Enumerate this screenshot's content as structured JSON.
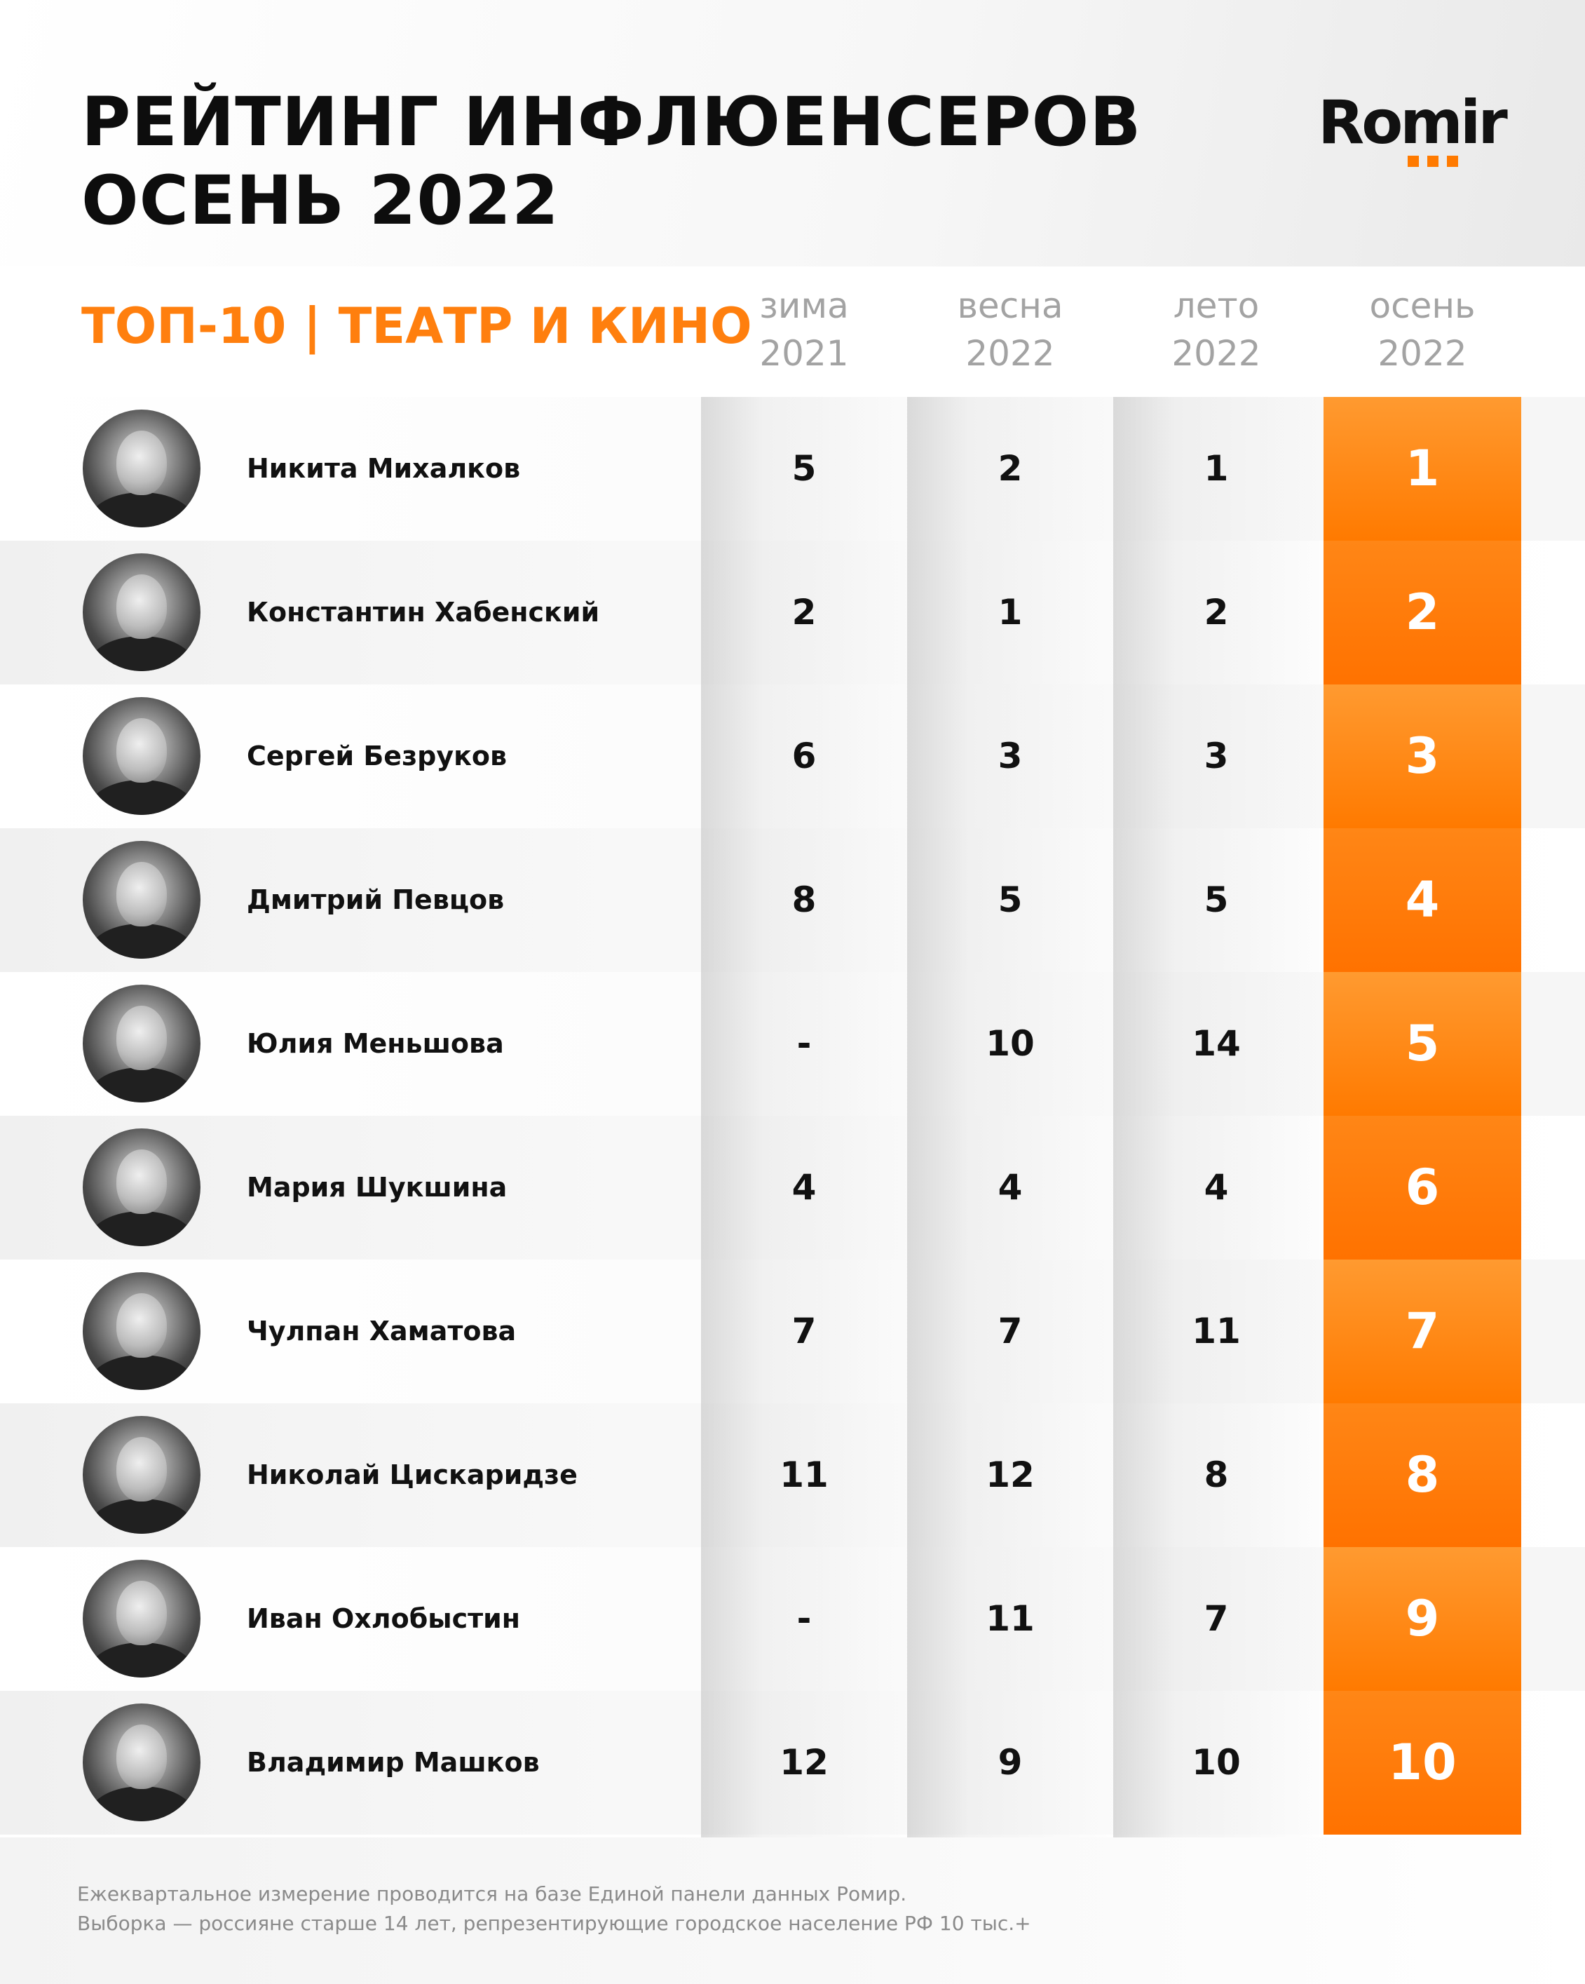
{
  "header": {
    "title_line1": "РЕЙТИНГ ИНФЛЮЕНСЕРОВ",
    "title_line2": "ОСЕНЬ 2022",
    "logo_text": "Romir",
    "subtitle": "ТОП-10 | ТЕАТР И КИНО"
  },
  "columns": [
    {
      "season": "зима",
      "year": "2021"
    },
    {
      "season": "весна",
      "year": "2022"
    },
    {
      "season": "лето",
      "year": "2022"
    },
    {
      "season": "осень",
      "year": "2022"
    }
  ],
  "rows": [
    {
      "name": "Никита Михалков",
      "values": [
        "5",
        "2",
        "1",
        "1"
      ]
    },
    {
      "name": "Константин Хабенский",
      "values": [
        "2",
        "1",
        "2",
        "2"
      ]
    },
    {
      "name": "Сергей Безруков",
      "values": [
        "6",
        "3",
        "3",
        "3"
      ]
    },
    {
      "name": "Дмитрий Певцов",
      "values": [
        "8",
        "5",
        "5",
        "4"
      ]
    },
    {
      "name": "Юлия Меньшова",
      "values": [
        "-",
        "10",
        "14",
        "5"
      ]
    },
    {
      "name": "Мария Шукшина",
      "values": [
        "4",
        "4",
        "4",
        "6"
      ]
    },
    {
      "name": "Чулпан Хаматова",
      "values": [
        "7",
        "7",
        "11",
        "7"
      ]
    },
    {
      "name": "Николай Цискаридзе",
      "values": [
        "11",
        "12",
        "8",
        "8"
      ]
    },
    {
      "name": "Иван Охлобыстин",
      "values": [
        "-",
        "11",
        "7",
        "9"
      ]
    },
    {
      "name": "Владимир Машков",
      "values": [
        "12",
        "9",
        "10",
        "10"
      ]
    }
  ],
  "footer": {
    "line1": "Ежеквартальное измерение проводится на базе Единой панели данных Ромир.",
    "line2": "Выборка — россияне старше 14 лет, репрезентирующие городское население РФ 10 тыс.+"
  },
  "colors": {
    "accent": "#ff7f0e",
    "column_highlight": "#ff7a00"
  },
  "chart_data": {
    "type": "table",
    "title": "РЕЙТИНГ ИНФЛЮЕНСЕРОВ ОСЕНЬ 2022",
    "subtitle": "ТОП-10 | ТЕАТР И КИНО",
    "columns": [
      "зима 2021",
      "весна 2022",
      "лето 2022",
      "осень 2022"
    ],
    "rows": [
      [
        "Никита Михалков",
        "5",
        "2",
        "1",
        "1"
      ],
      [
        "Константин Хабенский",
        "2",
        "1",
        "2",
        "2"
      ],
      [
        "Сергей Безруков",
        "6",
        "3",
        "3",
        "3"
      ],
      [
        "Дмитрий Певцов",
        "8",
        "5",
        "5",
        "4"
      ],
      [
        "Юлия Меньшова",
        "-",
        "10",
        "14",
        "5"
      ],
      [
        "Мария Шукшина",
        "4",
        "4",
        "4",
        "6"
      ],
      [
        "Чулпан Хаматова",
        "7",
        "7",
        "11",
        "7"
      ],
      [
        "Николай Цискаридзе",
        "11",
        "12",
        "8",
        "8"
      ],
      [
        "Иван Охлобыстин",
        "-",
        "11",
        "7",
        "9"
      ],
      [
        "Владимир Машков",
        "12",
        "9",
        "10",
        "10"
      ]
    ]
  }
}
